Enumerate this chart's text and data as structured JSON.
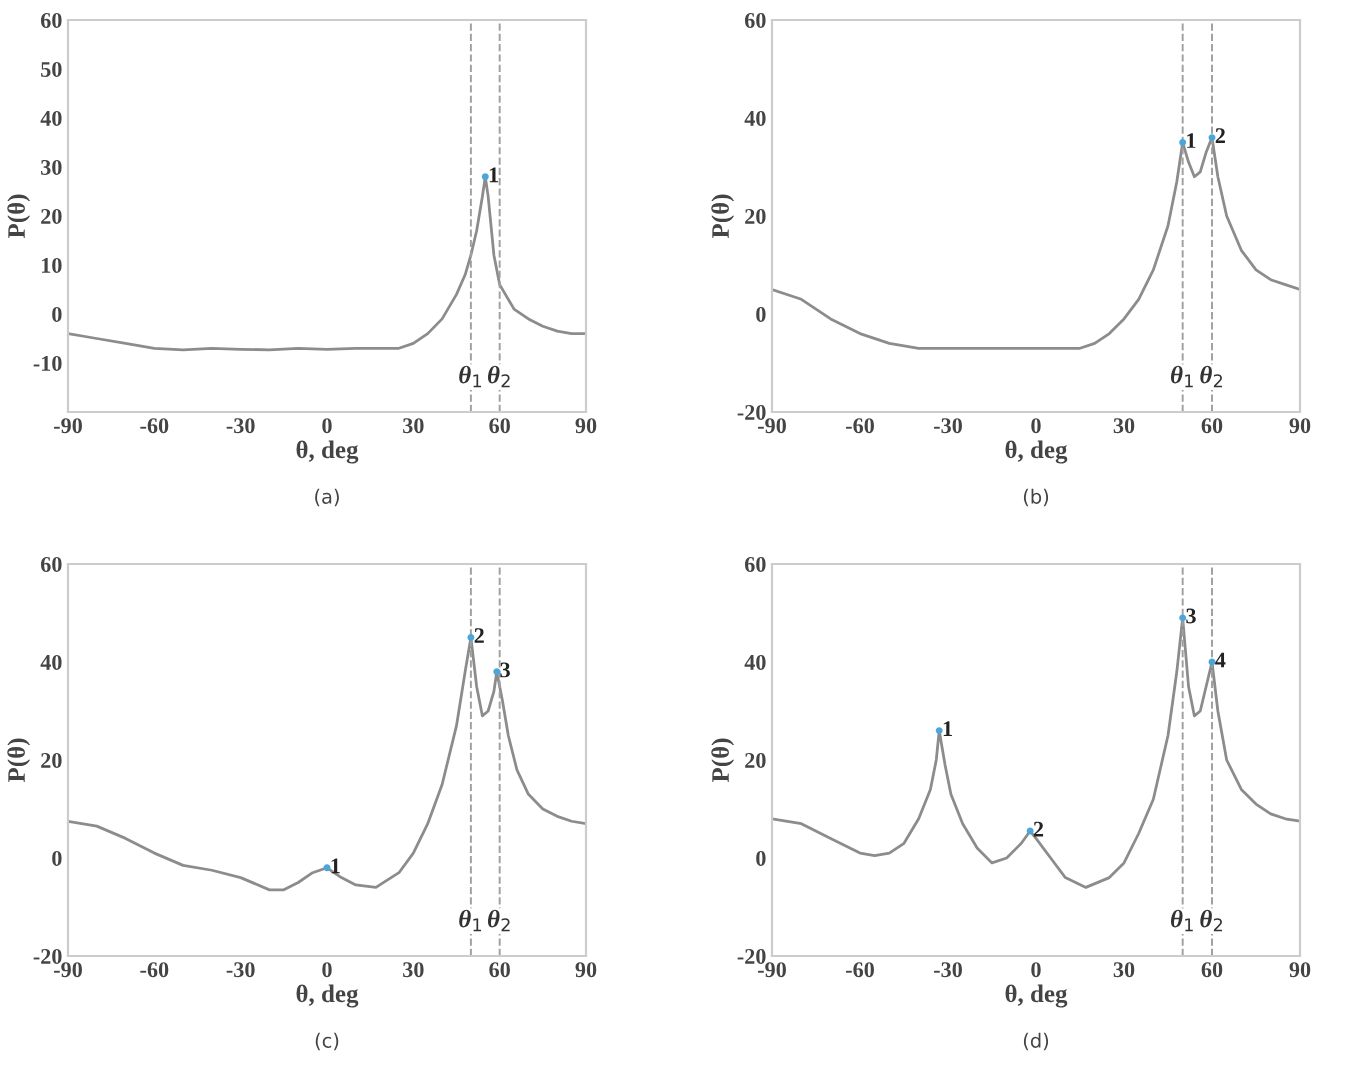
{
  "chart_data": [
    {
      "type": "line",
      "xlabel": "θ, deg",
      "ylabel": "P(θ)",
      "xlim": [
        -90,
        90
      ],
      "ylim": [
        -20,
        60
      ],
      "xticks": [
        -90,
        -60,
        -30,
        0,
        30,
        60,
        90
      ],
      "yticks": [
        -10,
        0,
        10,
        20,
        30,
        40,
        50,
        60
      ],
      "grid": false,
      "legend": false,
      "marker": "none",
      "line_style": "solid",
      "series": [
        {
          "color": "#8c8c8c",
          "x": [
            -90,
            -80,
            -70,
            -60,
            -50,
            -40,
            -30,
            -20,
            -10,
            0,
            10,
            20,
            25,
            30,
            35,
            40,
            45,
            48,
            50,
            52,
            54,
            55,
            56,
            58,
            60,
            65,
            70,
            75,
            80,
            85,
            90
          ],
          "values": [
            -4,
            -5,
            -6,
            -7,
            -7.3,
            -7,
            -7.2,
            -7.3,
            -7,
            -7.2,
            -7,
            -7,
            -7,
            -6,
            -4,
            -1,
            4,
            8,
            12,
            17,
            24,
            28,
            24,
            12,
            6,
            1,
            -1,
            -2.5,
            -3.5,
            -4,
            -4
          ]
        }
      ],
      "ref_lines": [
        {
          "axis": "x",
          "value": 50,
          "label": "θ$_{1}$",
          "color": "#a0a0a0",
          "line_style": "dashed"
        },
        {
          "axis": "x",
          "value": 60,
          "label": "θ$_{2}$",
          "color": "#a0a0a0",
          "line_style": "dashed"
        }
      ],
      "annotations": [
        {
          "text": "1",
          "x": 55,
          "y": 28
        },
        "(a)"
      ]
    },
    {
      "type": "line",
      "xlabel": "θ, deg",
      "ylabel": "P(θ)",
      "xlim": [
        -90,
        90
      ],
      "ylim": [
        -20,
        60
      ],
      "xticks": [
        -90,
        -60,
        -30,
        0,
        30,
        60,
        90
      ],
      "yticks": [
        -20,
        0,
        20,
        40,
        60
      ],
      "grid": false,
      "legend": false,
      "marker": "none",
      "line_style": "solid",
      "series": [
        {
          "color": "#8c8c8c",
          "x": [
            -90,
            -80,
            -70,
            -60,
            -50,
            -40,
            -30,
            -20,
            -10,
            0,
            10,
            15,
            20,
            25,
            30,
            35,
            40,
            45,
            48,
            50,
            52,
            54,
            56,
            58,
            60,
            62,
            65,
            70,
            75,
            80,
            85,
            90
          ],
          "values": [
            5,
            3,
            -1,
            -4,
            -6,
            -7,
            -7,
            -7,
            -7,
            -7,
            -7,
            -7,
            -6,
            -4,
            -1,
            3,
            9,
            18,
            27,
            35,
            31,
            28,
            29,
            33,
            36,
            28,
            20,
            13,
            9,
            7,
            6,
            5
          ]
        }
      ],
      "ref_lines": [
        {
          "axis": "x",
          "value": 50,
          "label": "θ$_{1}$",
          "color": "#a0a0a0",
          "line_style": "dashed"
        },
        {
          "axis": "x",
          "value": 60,
          "label": "θ$_{2}$",
          "color": "#a0a0a0",
          "line_style": "dashed"
        }
      ],
      "annotations": [
        {
          "text": "1",
          "x": 50,
          "y": 35
        },
        {
          "text": "2",
          "x": 60,
          "y": 36
        },
        "(b)"
      ]
    },
    {
      "type": "line",
      "xlabel": "θ, deg",
      "ylabel": "P(θ)",
      "xlim": [
        -90,
        90
      ],
      "ylim": [
        -20,
        60
      ],
      "xticks": [
        -90,
        -60,
        -30,
        0,
        30,
        60,
        90
      ],
      "yticks": [
        -20,
        0,
        20,
        40,
        60
      ],
      "grid": false,
      "legend": false,
      "marker": "none",
      "line_style": "solid",
      "series": [
        {
          "color": "#8c8c8c",
          "x": [
            -90,
            -80,
            -70,
            -60,
            -50,
            -40,
            -30,
            -20,
            -15,
            -10,
            -5,
            0,
            5,
            10,
            17,
            25,
            30,
            35,
            40,
            45,
            48,
            50,
            52,
            54,
            56,
            58,
            59,
            61,
            63,
            66,
            70,
            75,
            80,
            85,
            90
          ],
          "values": [
            7.5,
            6.5,
            4,
            1,
            -1.5,
            -2.5,
            -4,
            -6.5,
            -6.5,
            -5,
            -3,
            -2,
            -4,
            -5.5,
            -6,
            -3,
            1,
            7,
            15,
            27,
            38,
            45,
            35,
            29,
            30,
            34,
            38,
            32,
            25,
            18,
            13,
            10,
            8.5,
            7.5,
            7
          ]
        }
      ],
      "ref_lines": [
        {
          "axis": "x",
          "value": 50,
          "label": "θ$_{1}$",
          "color": "#a0a0a0",
          "line_style": "dashed"
        },
        {
          "axis": "x",
          "value": 60,
          "label": "θ$_{2}$",
          "color": "#a0a0a0",
          "line_style": "dashed"
        }
      ],
      "annotations": [
        {
          "text": "1",
          "x": 0,
          "y": -2
        },
        {
          "text": "2",
          "x": 50,
          "y": 45
        },
        {
          "text": "3",
          "x": 59,
          "y": 38
        },
        "(c)"
      ]
    },
    {
      "type": "line",
      "xlabel": "θ, deg",
      "ylabel": "P(θ)",
      "xlim": [
        -90,
        90
      ],
      "ylim": [
        -20,
        60
      ],
      "xticks": [
        -90,
        -60,
        -30,
        0,
        30,
        60,
        90
      ],
      "yticks": [
        -20,
        0,
        20,
        40,
        60
      ],
      "grid": false,
      "legend": false,
      "marker": "none",
      "line_style": "solid",
      "series": [
        {
          "color": "#8c8c8c",
          "x": [
            -90,
            -80,
            -70,
            -60,
            -55,
            -50,
            -45,
            -40,
            -36,
            -34,
            -33,
            -31,
            -29,
            -25,
            -20,
            -15,
            -10,
            -5,
            -2,
            0,
            5,
            10,
            17,
            25,
            30,
            35,
            40,
            45,
            48,
            50,
            52,
            54,
            56,
            58,
            60,
            62,
            65,
            70,
            75,
            80,
            85,
            90
          ],
          "values": [
            8,
            7,
            4,
            1,
            0.5,
            1,
            3,
            8,
            14,
            20,
            26,
            19,
            13,
            7,
            2,
            -1,
            0,
            3,
            5.5,
            4,
            0,
            -4,
            -6,
            -4,
            -1,
            5,
            12,
            25,
            38,
            49,
            35,
            29,
            30,
            35,
            40,
            30,
            20,
            14,
            11,
            9,
            8,
            7.5
          ]
        }
      ],
      "ref_lines": [
        {
          "axis": "x",
          "value": 50,
          "label": "θ$_{1}$",
          "color": "#a0a0a0",
          "line_style": "dashed"
        },
        {
          "axis": "x",
          "value": 60,
          "label": "θ$_{2}$",
          "color": "#a0a0a0",
          "line_style": "dashed"
        }
      ],
      "annotations": [
        {
          "text": "1",
          "x": -33,
          "y": 26
        },
        {
          "text": "2",
          "x": -2,
          "y": 5.5
        },
        {
          "text": "3",
          "x": 50,
          "y": 49
        },
        {
          "text": "4",
          "x": 60,
          "y": 40
        },
        "(d)"
      ]
    }
  ]
}
